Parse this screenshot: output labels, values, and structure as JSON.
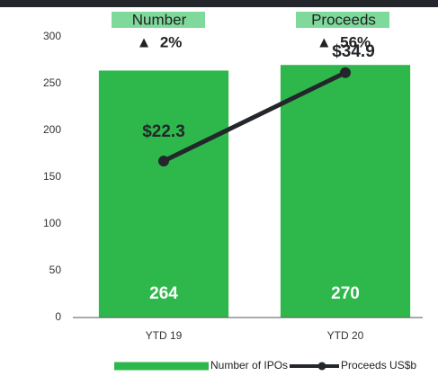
{
  "chart_data": {
    "type": "bar_line",
    "categories": [
      "YTD 19",
      "YTD 20"
    ],
    "series": [
      {
        "name": "Number of IPOs",
        "type": "bar",
        "color": "#2eb84b",
        "values": [
          264,
          270
        ]
      },
      {
        "name": "Proceeds US$b",
        "type": "line",
        "axis": "y2",
        "color": "#23262b",
        "values": [
          22.3,
          34.9
        ],
        "value_labels": [
          "$22.3",
          "$34.9"
        ]
      }
    ],
    "ylim": [
      0,
      300
    ],
    "yticks": [
      0,
      50,
      100,
      150,
      200,
      250,
      300
    ],
    "y2lim": [
      0,
      40
    ],
    "annotations": [
      {
        "label": "Number",
        "change": "▲  2%"
      },
      {
        "label": "Proceeds",
        "change": "▲  56%"
      }
    ],
    "header_color": "#7fd99b",
    "legend": "bottom"
  }
}
